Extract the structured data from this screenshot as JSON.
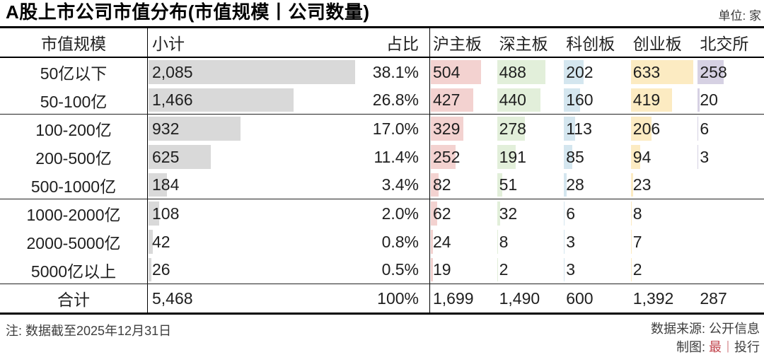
{
  "title": "A股上市公司市值分布(市值规模丨公司数量)",
  "unit_label": "单位: 家",
  "chart_data": {
    "type": "table",
    "columns": [
      "市值规模",
      "小计",
      "占比",
      "沪主板",
      "深主板",
      "科创板",
      "创业板",
      "北交所"
    ],
    "rows": [
      {
        "label": "50亿以下",
        "subtotal": 2085,
        "subtotal_text": "2,085",
        "share": "38.1%",
        "boards": [
          504,
          488,
          202,
          633,
          258
        ],
        "section_end": false
      },
      {
        "label": "50-100亿",
        "subtotal": 1466,
        "subtotal_text": "1,466",
        "share": "26.8%",
        "boards": [
          427,
          440,
          160,
          419,
          20
        ],
        "section_end": true
      },
      {
        "label": "100-200亿",
        "subtotal": 932,
        "subtotal_text": "932",
        "share": "17.0%",
        "boards": [
          329,
          278,
          113,
          206,
          6
        ],
        "section_end": false
      },
      {
        "label": "200-500亿",
        "subtotal": 625,
        "subtotal_text": "625",
        "share": "11.4%",
        "boards": [
          252,
          191,
          85,
          94,
          3
        ],
        "section_end": false
      },
      {
        "label": "500-1000亿",
        "subtotal": 184,
        "subtotal_text": "184",
        "share": "3.4%",
        "boards": [
          82,
          51,
          28,
          23,
          null
        ],
        "section_end": true
      },
      {
        "label": "1000-2000亿",
        "subtotal": 108,
        "subtotal_text": "108",
        "share": "2.0%",
        "boards": [
          62,
          32,
          6,
          8,
          null
        ],
        "section_end": false
      },
      {
        "label": "2000-5000亿",
        "subtotal": 42,
        "subtotal_text": "42",
        "share": "0.8%",
        "boards": [
          24,
          8,
          3,
          7,
          null
        ],
        "section_end": false
      },
      {
        "label": "5000亿以上",
        "subtotal": 26,
        "subtotal_text": "26",
        "share": "0.5%",
        "boards": [
          19,
          2,
          3,
          2,
          null
        ],
        "section_end": true
      }
    ],
    "total_row": {
      "label": "合计",
      "subtotal_text": "5,468",
      "share": "100%",
      "boards_text": [
        "1,699",
        "1,490",
        "600",
        "1,392",
        "287"
      ]
    },
    "layout_hint": "horizontal in-cell bars proportional to company counts"
  },
  "colors": {
    "subtotal_bar": "#d9d9d9",
    "board_bars": [
      "#f3d2d0",
      "#e2efda",
      "#d4e6ef",
      "#fcebc2",
      "#d6d1e3"
    ],
    "accent_red": "#c2454d",
    "accent_red_light": "#dc9a9e"
  },
  "footer": {
    "note": "注: 数据截至2025年12月31日",
    "source": "数据来源: 公开信息",
    "credit_prefix": "制图: ",
    "credit_brand": "最",
    "credit_sep": "丨",
    "credit_suffix": "投行"
  }
}
